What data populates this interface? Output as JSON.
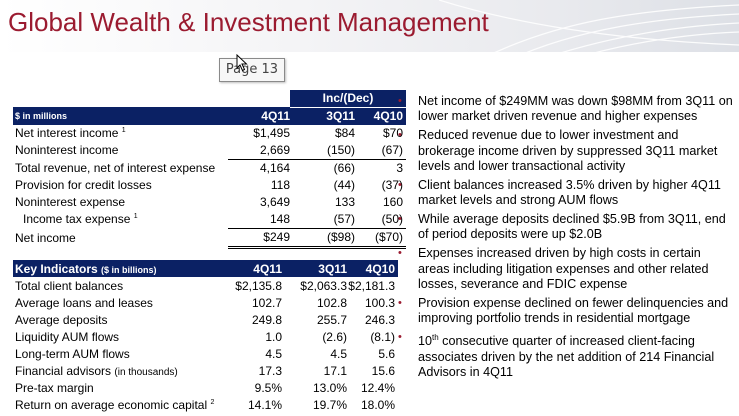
{
  "header": {
    "title": "Global Wealth & Investment Management",
    "tooltip": "Page 13"
  },
  "financials": {
    "group_header": "Inc/(Dec)",
    "units_label": "$ in millions",
    "columns": [
      "4Q11",
      "3Q11",
      "4Q10"
    ],
    "rows": [
      {
        "label": "Net interest income",
        "sup": "1",
        "values": [
          "$1,495",
          "$84",
          "$70"
        ]
      },
      {
        "label": "Noninterest income",
        "sup": "",
        "values": [
          "2,669",
          "(150)",
          "(67)"
        ]
      },
      {
        "label": "Total revenue, net of interest expense",
        "sup": "",
        "values": [
          "4,164",
          "(66)",
          "3"
        ]
      },
      {
        "label": "Provision for credit losses",
        "sup": "",
        "values": [
          "118",
          "(44)",
          "(37)"
        ]
      },
      {
        "label": "Noninterest expense",
        "sup": "",
        "values": [
          "3,649",
          "133",
          "160"
        ]
      },
      {
        "label": "Income tax expense",
        "sup": "1",
        "values": [
          "148",
          "(57)",
          "(50)"
        ]
      },
      {
        "label": "Net income",
        "sup": "",
        "values": [
          "$249",
          "($98)",
          "($70)"
        ]
      }
    ]
  },
  "key_indicators": {
    "header_label": "Key Indicators",
    "header_units": "($ in billions)",
    "columns": [
      "4Q11",
      "3Q11",
      "4Q10"
    ],
    "rows": [
      {
        "label": "Total client balances",
        "note": "",
        "sup": "",
        "values": [
          "$2,135.8",
          "$2,063.3",
          "$2,181.3"
        ]
      },
      {
        "label": "Average loans and leases",
        "note": "",
        "sup": "",
        "values": [
          "102.7",
          "102.8",
          "100.3"
        ]
      },
      {
        "label": "Average deposits",
        "note": "",
        "sup": "",
        "values": [
          "249.8",
          "255.7",
          "246.3"
        ]
      },
      {
        "label": "Liquidity AUM flows",
        "note": "",
        "sup": "",
        "values": [
          "1.0",
          "(2.6)",
          "(8.1)"
        ]
      },
      {
        "label": "Long-term AUM flows",
        "note": "",
        "sup": "",
        "values": [
          "4.5",
          "4.5",
          "5.6"
        ]
      },
      {
        "label": "Financial advisors",
        "note": "(in thousands)",
        "sup": "",
        "values": [
          "17.3",
          "17.1",
          "15.6"
        ]
      },
      {
        "label": "Pre-tax margin",
        "note": "",
        "sup": "",
        "values": [
          "9.5%",
          "13.0%",
          "12.4%"
        ]
      },
      {
        "label": "Return on average economic capital",
        "note": "",
        "sup": "2",
        "values": [
          "14.1%",
          "19.7%",
          "18.0%"
        ]
      }
    ]
  },
  "bullets": [
    {
      "text": "Net income of $249MM was down $98MM from 3Q11 on lower market driven revenue and higher expenses"
    },
    {
      "text": "Reduced revenue due to lower investment and brokerage income driven by suppressed 3Q11 market levels and lower transactional activity"
    },
    {
      "text": "Client balances increased 3.5% driven by higher 4Q11 market levels and strong AUM flows"
    },
    {
      "text": "While average deposits declined $5.9B from 3Q11, end of period deposits were up $2.0B"
    },
    {
      "text": "Expenses increased driven by high costs in certain areas including litigation expenses and other related losses, severance and FDIC expense"
    },
    {
      "text": "Provision expense declined on fewer delinquencies and improving portfolio trends in residential mortgage"
    },
    {
      "text_pre": "10",
      "text_sup": "th",
      "text": " consecutive quarter of increased client-facing associates driven by the net addition of 214 Financial Advisors in 4Q11"
    }
  ],
  "colors": {
    "title": "#9b1b30",
    "header_bg": "#0b2164",
    "bullet": "#9b1b30"
  }
}
